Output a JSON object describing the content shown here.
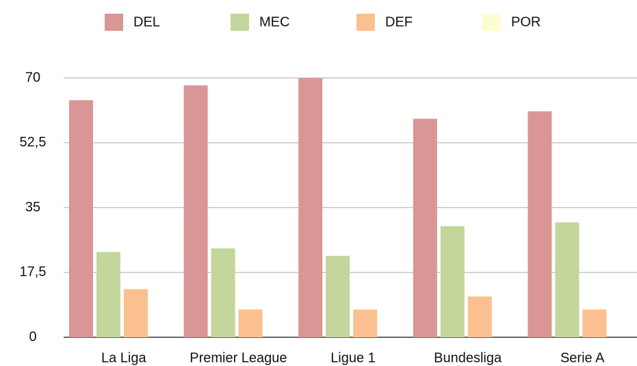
{
  "chart_data": {
    "type": "bar",
    "categories": [
      "La Liga",
      "Premier League",
      "Ligue 1",
      "Bundesliga",
      "Serie A"
    ],
    "series": [
      {
        "name": "DEL",
        "color": "#d99694",
        "values": [
          64,
          68,
          70,
          59,
          61
        ]
      },
      {
        "name": "MEC",
        "color": "#c3d69b",
        "values": [
          23,
          24,
          22,
          30,
          31
        ]
      },
      {
        "name": "DEF",
        "color": "#fac090",
        "values": [
          13,
          7.5,
          7.5,
          11,
          7.5
        ]
      },
      {
        "name": "POR",
        "color": "#fdfdd0",
        "values": [
          0,
          0,
          0,
          0,
          0
        ]
      }
    ],
    "ylim": [
      0,
      70
    ],
    "yticks": [
      0,
      {
        "value": 17.5,
        "label": "17,5"
      },
      35,
      {
        "value": 52.5,
        "label": "52,5"
      },
      70
    ],
    "grid": true,
    "legend": "top"
  }
}
